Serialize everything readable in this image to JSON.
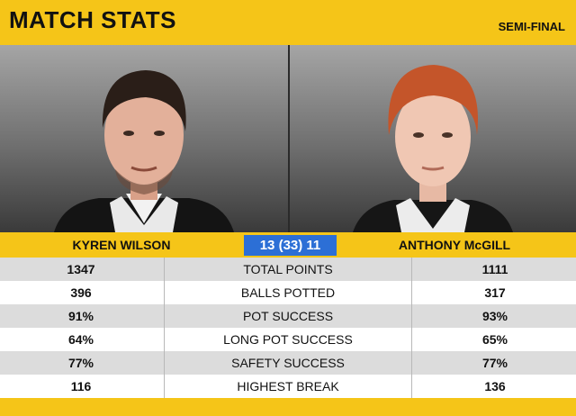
{
  "header": {
    "title": "MATCH STATS",
    "round": "SEMI-FINAL"
  },
  "players": {
    "left": {
      "name": "KYREN WILSON"
    },
    "right": {
      "name": "ANTHONY McGILL"
    }
  },
  "score": "13 (33) 11",
  "stats": [
    {
      "left": "1347",
      "label": "TOTAL POINTS",
      "right": "1111"
    },
    {
      "left": "396",
      "label": "BALLS POTTED",
      "right": "317"
    },
    {
      "left": "91%",
      "label": "POT SUCCESS",
      "right": "93%"
    },
    {
      "left": "64%",
      "label": "LONG POT SUCCESS",
      "right": "65%"
    },
    {
      "left": "77%",
      "label": "SAFETY SUCCESS",
      "right": "77%"
    },
    {
      "left": "116",
      "label": "HIGHEST BREAK",
      "right": "136"
    }
  ],
  "colors": {
    "accent": "#f5c518",
    "score_bg": "#2c6fd6"
  }
}
